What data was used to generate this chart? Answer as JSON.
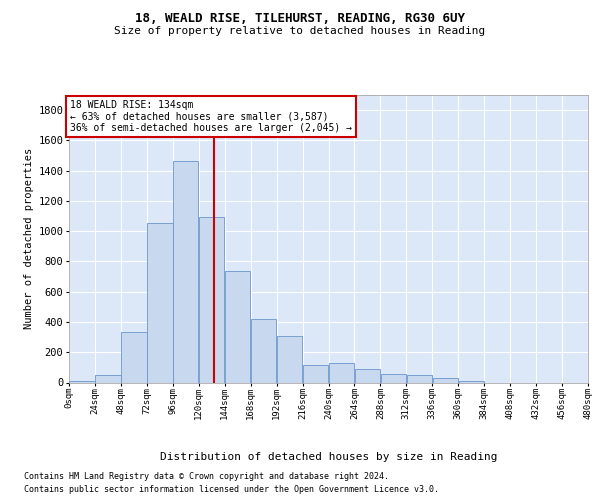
{
  "title1": "18, WEALD RISE, TILEHURST, READING, RG30 6UY",
  "title2": "Size of property relative to detached houses in Reading",
  "xlabel": "Distribution of detached houses by size in Reading",
  "ylabel": "Number of detached properties",
  "footer1": "Contains HM Land Registry data © Crown copyright and database right 2024.",
  "footer2": "Contains public sector information licensed under the Open Government Licence v3.0.",
  "annotation_line1": "18 WEALD RISE: 134sqm",
  "annotation_line2": "← 63% of detached houses are smaller (3,587)",
  "annotation_line3": "36% of semi-detached houses are larger (2,045) →",
  "bar_color": "#c8d8ee",
  "bar_edge_color": "#6b96cc",
  "vline_color": "#cc0000",
  "vline_x": 134,
  "bins": [
    0,
    24,
    48,
    72,
    96,
    120,
    144,
    168,
    192,
    216,
    240,
    264,
    288,
    312,
    336,
    360,
    384,
    408,
    432,
    456,
    480
  ],
  "counts": [
    8,
    48,
    335,
    1055,
    1465,
    1095,
    735,
    420,
    310,
    118,
    130,
    88,
    58,
    50,
    28,
    10,
    0,
    0,
    0,
    0
  ],
  "ylim": [
    0,
    1900
  ],
  "yticks": [
    0,
    200,
    400,
    600,
    800,
    1000,
    1200,
    1400,
    1600,
    1800
  ],
  "grid_color": "#ffffff",
  "bg_color": "#dce8f8",
  "annotation_box_facecolor": "#ffffff",
  "annotation_box_edgecolor": "#cc0000",
  "fig_width": 6.0,
  "fig_height": 5.0,
  "dpi": 100
}
